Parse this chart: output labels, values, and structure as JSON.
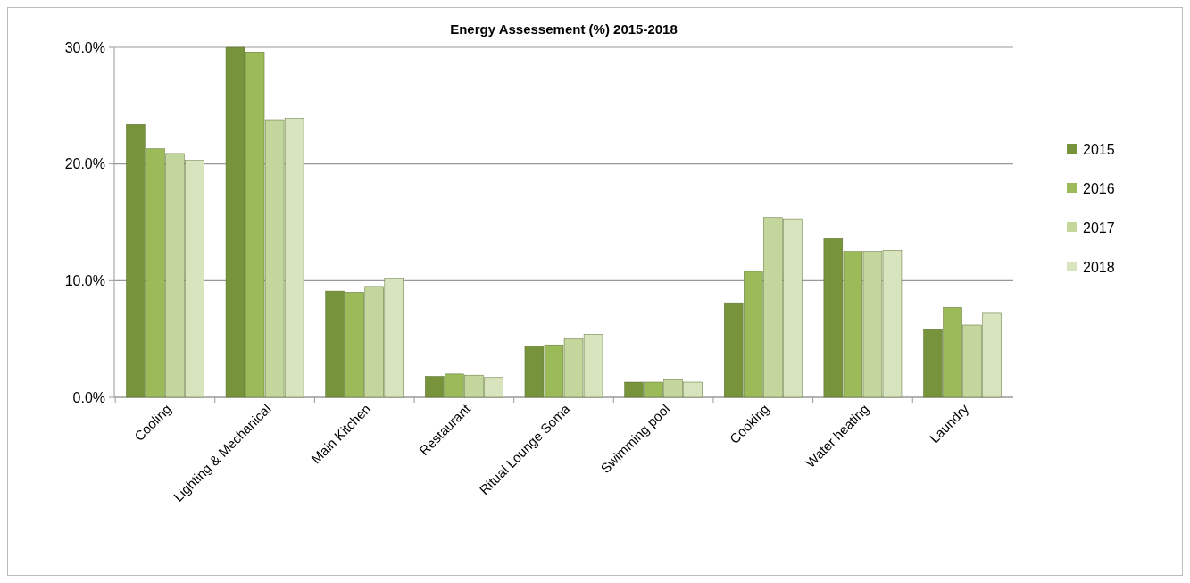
{
  "chart_data": {
    "type": "bar",
    "title": "Energy Assessement   (%) 2015-2018",
    "categories": [
      "Cooling",
      "Lighting & Mechanical",
      "Main Kitchen",
      "Restaurant",
      "Ritual Lounge Soma",
      "Swimming pool",
      "Cooking",
      "Water heating",
      "Laundry"
    ],
    "series": [
      {
        "name": "2015",
        "color": "#77933c",
        "values": [
          23.4,
          30.0,
          9.1,
          1.8,
          4.4,
          1.3,
          8.1,
          13.6,
          5.8
        ]
      },
      {
        "name": "2016",
        "color": "#9bbb59",
        "values": [
          21.3,
          29.6,
          9.0,
          2.0,
          4.5,
          1.3,
          10.8,
          12.5,
          7.7
        ]
      },
      {
        "name": "2017",
        "color": "#c3d69b",
        "values": [
          20.9,
          23.8,
          9.5,
          1.9,
          5.0,
          1.5,
          15.4,
          12.5,
          6.2
        ]
      },
      {
        "name": "2018",
        "color": "#d7e4bd",
        "values": [
          20.3,
          23.9,
          10.2,
          1.7,
          5.4,
          1.3,
          15.3,
          12.6,
          7.2
        ]
      }
    ],
    "ylim": [
      0,
      30
    ],
    "yticks": [
      {
        "value": 0,
        "label": "0.0%"
      },
      {
        "value": 10,
        "label": "10.0%"
      },
      {
        "value": 20,
        "label": "20.0%"
      },
      {
        "value": 30,
        "label": "30.0%"
      }
    ],
    "grid": "y",
    "legend": "right"
  }
}
